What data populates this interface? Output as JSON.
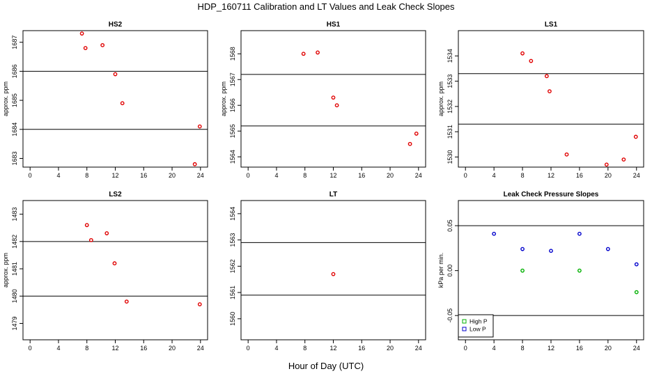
{
  "figure": {
    "title": "HDP_160711  Calibration and LT Values and Leak Check Slopes",
    "xlabel": "Hour of Day (UTC)"
  },
  "chart_data": [
    {
      "id": "hs2",
      "type": "scatter",
      "title": "HS2",
      "ylabel": "approx. ppm",
      "xlim": [
        -1,
        25
      ],
      "ylim": [
        1682.7,
        1687.4
      ],
      "xticks": [
        0,
        4,
        8,
        12,
        16,
        20,
        24
      ],
      "yticks": [
        1683,
        1684,
        1685,
        1686,
        1687
      ],
      "hlines": [
        1684.0,
        1686.0
      ],
      "series": [
        {
          "color": "#e00000",
          "x": [
            7.3,
            7.8,
            10.2,
            12.0,
            13.0,
            23.2,
            23.9
          ],
          "y": [
            1687.3,
            1686.8,
            1686.9,
            1685.9,
            1684.9,
            1682.8,
            1684.1
          ]
        }
      ]
    },
    {
      "id": "hs1",
      "type": "scatter",
      "title": "HS1",
      "ylabel": "approx. ppm",
      "xlim": [
        -1,
        25
      ],
      "ylim": [
        1563.6,
        1568.9
      ],
      "xticks": [
        0,
        4,
        8,
        12,
        16,
        20,
        24
      ],
      "yticks": [
        1564,
        1565,
        1566,
        1567,
        1568
      ],
      "hlines": [
        1565.2,
        1567.2
      ],
      "series": [
        {
          "color": "#e00000",
          "x": [
            7.8,
            9.8,
            12.0,
            12.5,
            22.8,
            23.7
          ],
          "y": [
            1568.0,
            1568.05,
            1566.3,
            1566.0,
            1564.5,
            1564.9
          ]
        }
      ]
    },
    {
      "id": "ls1",
      "type": "scatter",
      "title": "LS1",
      "ylabel": "approx. ppm",
      "xlim": [
        -1,
        25
      ],
      "ylim": [
        1529.6,
        1535.0
      ],
      "xticks": [
        0,
        4,
        8,
        12,
        16,
        20,
        24
      ],
      "yticks": [
        1530,
        1531,
        1532,
        1533,
        1534
      ],
      "hlines": [
        1531.3,
        1533.3
      ],
      "series": [
        {
          "color": "#e00000",
          "x": [
            8.0,
            9.2,
            11.4,
            11.8,
            14.2,
            19.8,
            22.2,
            23.9
          ],
          "y": [
            1534.1,
            1533.8,
            1533.2,
            1532.6,
            1530.1,
            1529.7,
            1529.9,
            1530.8
          ]
        }
      ]
    },
    {
      "id": "ls2",
      "type": "scatter",
      "title": "LS2",
      "ylabel": "approx. ppm",
      "xlim": [
        -1,
        25
      ],
      "ylim": [
        1478.4,
        1483.5
      ],
      "xticks": [
        0,
        4,
        8,
        12,
        16,
        20,
        24
      ],
      "yticks": [
        1479,
        1480,
        1481,
        1482,
        1483
      ],
      "hlines": [
        1480.0,
        1482.0
      ],
      "series": [
        {
          "color": "#e00000",
          "x": [
            8.0,
            8.6,
            10.8,
            11.9,
            13.6,
            23.9
          ],
          "y": [
            1482.6,
            1482.05,
            1482.3,
            1481.2,
            1479.8,
            1479.7
          ]
        }
      ]
    },
    {
      "id": "lt",
      "type": "scatter",
      "title": "LT",
      "ylabel": "",
      "xlim": [
        -1,
        25
      ],
      "ylim": [
        1559.2,
        1564.5
      ],
      "xticks": [
        0,
        4,
        8,
        12,
        16,
        20,
        24
      ],
      "yticks": [
        1560,
        1561,
        1562,
        1563,
        1564
      ],
      "hlines": [
        1560.9,
        1562.9
      ],
      "series": [
        {
          "color": "#e00000",
          "x": [
            12.0
          ],
          "y": [
            1561.7
          ]
        }
      ]
    },
    {
      "id": "leak",
      "type": "scatter",
      "title": "Leak Check Pressure Slopes",
      "ylabel": "kPa per min.",
      "xlim": [
        -1,
        25
      ],
      "ylim": [
        -0.077,
        0.078
      ],
      "xticks": [
        0,
        4,
        8,
        12,
        16,
        20,
        24
      ],
      "yticks": [
        -0.05,
        0.0,
        0.05
      ],
      "yticklabels": [
        "-0.05",
        "0.00",
        "0.05"
      ],
      "hlines": [
        -0.05,
        0.05
      ],
      "legend": {
        "position": "bottom-left",
        "entries": [
          "High P",
          "Low P"
        ]
      },
      "series": [
        {
          "name": "High P",
          "color": "#00b000",
          "x": [
            8.0,
            16.0,
            24.0
          ],
          "y": [
            0.0,
            0.0,
            -0.024
          ]
        },
        {
          "name": "Low P",
          "color": "#0000cc",
          "x": [
            4.0,
            8.0,
            12.0,
            16.0,
            20.0,
            24.0
          ],
          "y": [
            0.041,
            0.024,
            0.022,
            0.041,
            0.024,
            0.007
          ]
        }
      ]
    }
  ]
}
